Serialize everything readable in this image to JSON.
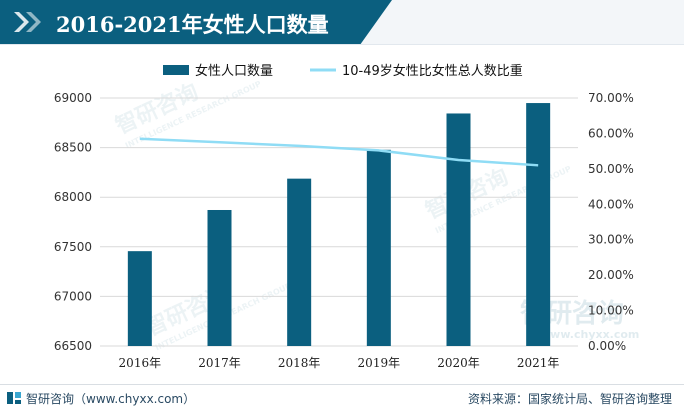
{
  "header": {
    "title": "2016-2021年女性人口数量"
  },
  "footer": {
    "brand": "智研咨询",
    "url": "（www.chyxx.com）",
    "source": "资料来源：国家统计局、智研咨询整理"
  },
  "watermark": {
    "cn": "智研咨询",
    "en": "INTELLIGENCE RESEARCH GROUP",
    "url": "www.chyxx.com"
  },
  "colors": {
    "bar": "#0b5f7f",
    "line": "#8fdcf5",
    "title_bg": "#0b5f7f",
    "grid": "#d9d9d9"
  },
  "chart_data": {
    "type": "bar",
    "title": "2016-2021年女性人口数量",
    "categories": [
      "2016年",
      "2017年",
      "2018年",
      "2019年",
      "2020年",
      "2021年"
    ],
    "series": [
      {
        "name": "女性人口数量",
        "type": "bar",
        "axis": "left",
        "values": [
          67456,
          67871,
          68187,
          68478,
          68844,
          68949
        ]
      },
      {
        "name": "10-49岁女性比女性总人数比重",
        "type": "line",
        "axis": "right",
        "values": [
          58.5,
          57.5,
          56.5,
          55.2,
          52.5,
          51.0
        ]
      }
    ],
    "y_left": {
      "min": 66500,
      "max": 69000,
      "step": 500,
      "tick_labels": [
        "66500",
        "67000",
        "67500",
        "68000",
        "68500",
        "69000"
      ]
    },
    "y_right": {
      "min": 0,
      "max": 70,
      "step": 10,
      "tick_labels": [
        "0.00%",
        "10.00%",
        "20.00%",
        "30.00%",
        "40.00%",
        "50.00%",
        "60.00%",
        "70.00%"
      ]
    },
    "legend_position": "top",
    "grid": true
  }
}
